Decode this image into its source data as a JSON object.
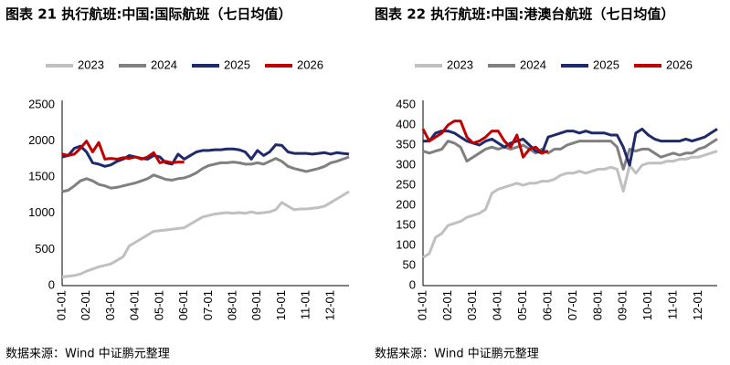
{
  "chart_data": [
    {
      "type": "line",
      "title": "图表 21 执行航班:中国:国际航班（七日均值）",
      "note": "数据来源：Wind 中证鹏元整理",
      "categories": [
        "01-01",
        null,
        null,
        null,
        "02-01",
        null,
        null,
        null,
        "03-01",
        null,
        null,
        null,
        "04-01",
        null,
        null,
        null,
        "05-01",
        null,
        null,
        null,
        "06-01",
        null,
        null,
        null,
        "07-01",
        null,
        null,
        null,
        "08-01",
        null,
        null,
        null,
        "09-01",
        null,
        null,
        null,
        "10-01",
        null,
        null,
        null,
        "11-01",
        null,
        null,
        null,
        "12-01",
        null,
        null,
        null
      ],
      "ylim": [
        0,
        2500
      ],
      "yticks": [
        0,
        500,
        1000,
        1500,
        2000,
        2500
      ],
      "grid": false,
      "series": [
        {
          "name": "2023",
          "color": "#c0c0c0",
          "values": [
            120,
            130,
            140,
            160,
            200,
            230,
            260,
            280,
            300,
            350,
            400,
            550,
            600,
            650,
            700,
            750,
            760,
            770,
            780,
            790,
            800,
            850,
            900,
            950,
            970,
            990,
            1000,
            1010,
            1000,
            1010,
            1000,
            1020,
            1000,
            1010,
            1020,
            1050,
            1150,
            1100,
            1050,
            1060,
            1060,
            1070,
            1080,
            1100,
            1150,
            1200,
            1250,
            1300
          ]
        },
        {
          "name": "2024",
          "color": "#808080",
          "values": [
            1300,
            1320,
            1380,
            1450,
            1480,
            1450,
            1400,
            1380,
            1350,
            1360,
            1380,
            1400,
            1420,
            1450,
            1480,
            1530,
            1500,
            1470,
            1460,
            1480,
            1490,
            1520,
            1560,
            1620,
            1660,
            1680,
            1700,
            1700,
            1710,
            1700,
            1680,
            1680,
            1700,
            1680,
            1720,
            1760,
            1720,
            1650,
            1620,
            1600,
            1580,
            1600,
            1620,
            1650,
            1700,
            1720,
            1750,
            1780
          ]
        },
        {
          "name": "2025",
          "color": "#1f2a6b",
          "values": [
            1780,
            1800,
            1900,
            1930,
            1850,
            1700,
            1680,
            1650,
            1670,
            1720,
            1750,
            1800,
            1780,
            1760,
            1750,
            1800,
            1780,
            1700,
            1680,
            1820,
            1750,
            1800,
            1850,
            1870,
            1870,
            1880,
            1880,
            1890,
            1890,
            1880,
            1850,
            1750,
            1870,
            1800,
            1850,
            1950,
            1940,
            1850,
            1830,
            1830,
            1830,
            1820,
            1830,
            1840,
            1820,
            1840,
            1830,
            1820
          ]
        },
        {
          "name": "2026",
          "color": "#c00000",
          "values": [
            1820,
            1800,
            1820,
            1900,
            2000,
            1850,
            1980,
            1750,
            1760,
            1750,
            1770,
            1760,
            1780,
            1750,
            1780,
            1840,
            1700,
            1720,
            1700,
            1710,
            1710,
            null,
            null,
            null,
            null,
            null,
            null,
            null,
            null,
            null,
            null,
            null,
            null,
            null,
            null,
            null,
            null,
            null,
            null,
            null,
            null,
            null,
            null,
            null,
            null,
            null,
            null,
            null
          ]
        }
      ]
    },
    {
      "type": "line",
      "title": "图表 22 执行航班:中国:港澳台航班（七日均值）",
      "note": "数据来源：Wind 中证鹏元整理",
      "categories": [
        "01-01",
        null,
        null,
        null,
        "02-01",
        null,
        null,
        null,
        "03-01",
        null,
        null,
        null,
        "04-01",
        null,
        null,
        null,
        "05-01",
        null,
        null,
        null,
        "06-01",
        null,
        null,
        null,
        "07-01",
        null,
        null,
        null,
        "08-01",
        null,
        null,
        null,
        "09-01",
        null,
        null,
        null,
        "10-01",
        null,
        null,
        null,
        "11-01",
        null,
        null,
        null,
        "12-01",
        null,
        null,
        null
      ],
      "ylim": [
        0,
        450
      ],
      "yticks": [
        0,
        50,
        100,
        150,
        200,
        250,
        300,
        350,
        400,
        450
      ],
      "grid": false,
      "series": [
        {
          "name": "2023",
          "color": "#c0c0c0",
          "values": [
            70,
            80,
            120,
            130,
            150,
            155,
            160,
            170,
            175,
            180,
            190,
            230,
            240,
            245,
            250,
            255,
            250,
            255,
            255,
            260,
            260,
            265,
            275,
            280,
            280,
            285,
            280,
            285,
            290,
            290,
            295,
            290,
            235,
            300,
            280,
            300,
            305,
            305,
            305,
            310,
            310,
            315,
            315,
            320,
            320,
            325,
            330,
            335
          ]
        },
        {
          "name": "2024",
          "color": "#808080",
          "values": [
            335,
            330,
            335,
            340,
            360,
            355,
            345,
            310,
            320,
            330,
            340,
            345,
            340,
            345,
            340,
            345,
            350,
            340,
            330,
            340,
            330,
            340,
            340,
            350,
            355,
            360,
            360,
            360,
            360,
            360,
            360,
            345,
            290,
            340,
            335,
            340,
            340,
            330,
            320,
            325,
            330,
            325,
            330,
            330,
            340,
            345,
            355,
            365
          ]
        },
        {
          "name": "2025",
          "color": "#1f2a6b",
          "values": [
            360,
            360,
            380,
            385,
            385,
            380,
            370,
            360,
            355,
            350,
            360,
            365,
            355,
            345,
            355,
            360,
            365,
            350,
            335,
            330,
            370,
            375,
            380,
            385,
            385,
            380,
            385,
            380,
            380,
            380,
            375,
            375,
            345,
            300,
            380,
            390,
            375,
            365,
            360,
            360,
            360,
            360,
            365,
            360,
            365,
            370,
            380,
            390
          ]
        },
        {
          "name": "2026",
          "color": "#c00000",
          "values": [
            390,
            360,
            370,
            380,
            400,
            410,
            410,
            370,
            355,
            360,
            370,
            385,
            385,
            360,
            345,
            375,
            320,
            340,
            345,
            330,
            335,
            null,
            null,
            null,
            null,
            null,
            null,
            null,
            null,
            null,
            null,
            null,
            null,
            null,
            null,
            null,
            null,
            null,
            null,
            null,
            null,
            null,
            null,
            null,
            null,
            null,
            null,
            null
          ]
        }
      ]
    }
  ]
}
